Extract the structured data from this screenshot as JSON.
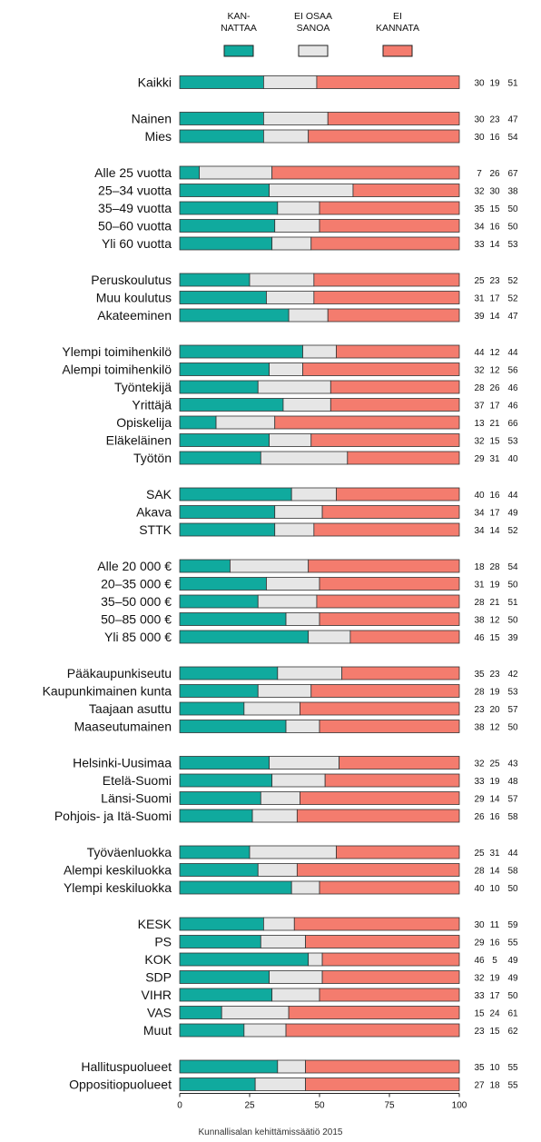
{
  "chart_data": {
    "type": "bar",
    "stacked": true,
    "orientation": "horizontal",
    "legend": {
      "placement": "top",
      "entries": [
        {
          "lines": [
            "KAN-",
            "NATTAA"
          ],
          "color": "#10aa9e"
        },
        {
          "lines": [
            "EI OSAA",
            "SANOA"
          ],
          "color": "#e6e6e6"
        },
        {
          "lines": [
            "EI",
            "KANNATA"
          ],
          "color": "#f47c6e"
        }
      ]
    },
    "series": [
      {
        "color": "#10aa9e"
      },
      {
        "color": "#e6e6e6"
      },
      {
        "color": "#f47c6e"
      }
    ],
    "groups": [
      {
        "rows": [
          {
            "label": "Kaikki",
            "values": [
              30,
              19,
              51
            ]
          }
        ]
      },
      {
        "rows": [
          {
            "label": "Nainen",
            "values": [
              30,
              23,
              47
            ]
          },
          {
            "label": "Mies",
            "values": [
              30,
              16,
              54
            ]
          }
        ]
      },
      {
        "rows": [
          {
            "label": "Alle 25 vuotta",
            "values": [
              7,
              26,
              67
            ]
          },
          {
            "label": "25–34 vuotta",
            "values": [
              32,
              30,
              38
            ]
          },
          {
            "label": "35–49 vuotta",
            "values": [
              35,
              15,
              50
            ]
          },
          {
            "label": "50–60 vuotta",
            "values": [
              34,
              16,
              50
            ]
          },
          {
            "label": "Yli 60 vuotta",
            "values": [
              33,
              14,
              53
            ]
          }
        ]
      },
      {
        "rows": [
          {
            "label": "Peruskoulutus",
            "values": [
              25,
              23,
              52
            ]
          },
          {
            "label": "Muu koulutus",
            "values": [
              31,
              17,
              52
            ]
          },
          {
            "label": "Akateeminen",
            "values": [
              39,
              14,
              47
            ]
          }
        ]
      },
      {
        "rows": [
          {
            "label": "Ylempi toimihenkilö",
            "values": [
              44,
              12,
              44
            ]
          },
          {
            "label": "Alempi toimihenkilö",
            "values": [
              32,
              12,
              56
            ]
          },
          {
            "label": "Työntekijä",
            "values": [
              28,
              26,
              46
            ]
          },
          {
            "label": "Yrittäjä",
            "values": [
              37,
              17,
              46
            ]
          },
          {
            "label": "Opiskelija",
            "values": [
              13,
              21,
              66
            ]
          },
          {
            "label": "Eläkeläinen",
            "values": [
              32,
              15,
              53
            ]
          },
          {
            "label": "Työtön",
            "values": [
              29,
              31,
              40
            ]
          }
        ]
      },
      {
        "rows": [
          {
            "label": "SAK",
            "values": [
              40,
              16,
              44
            ]
          },
          {
            "label": "Akava",
            "values": [
              34,
              17,
              49
            ]
          },
          {
            "label": "STTK",
            "values": [
              34,
              14,
              52
            ]
          }
        ]
      },
      {
        "rows": [
          {
            "label": "Alle 20 000 €",
            "values": [
              18,
              28,
              54
            ]
          },
          {
            "label": "20–35 000 €",
            "values": [
              31,
              19,
              50
            ]
          },
          {
            "label": "35–50 000 €",
            "values": [
              28,
              21,
              51
            ]
          },
          {
            "label": "50–85 000 €",
            "values": [
              38,
              12,
              50
            ]
          },
          {
            "label": "Yli 85 000 €",
            "values": [
              46,
              15,
              39
            ]
          }
        ]
      },
      {
        "rows": [
          {
            "label": "Pääkaupunkiseutu",
            "values": [
              35,
              23,
              42
            ]
          },
          {
            "label": "Kaupunkimainen kunta",
            "values": [
              28,
              19,
              53
            ]
          },
          {
            "label": "Taajaan asuttu",
            "values": [
              23,
              20,
              57
            ]
          },
          {
            "label": "Maaseutumainen",
            "values": [
              38,
              12,
              50
            ]
          }
        ]
      },
      {
        "rows": [
          {
            "label": "Helsinki-Uusimaa",
            "values": [
              32,
              25,
              43
            ]
          },
          {
            "label": "Etelä-Suomi",
            "values": [
              33,
              19,
              48
            ]
          },
          {
            "label": "Länsi-Suomi",
            "values": [
              29,
              14,
              57
            ]
          },
          {
            "label": "Pohjois- ja Itä-Suomi",
            "values": [
              26,
              16,
              58
            ]
          }
        ]
      },
      {
        "rows": [
          {
            "label": "Työväenluokka",
            "values": [
              25,
              31,
              44
            ]
          },
          {
            "label": "Alempi keskiluokka",
            "values": [
              28,
              14,
              58
            ]
          },
          {
            "label": "Ylempi keskiluokka",
            "values": [
              40,
              10,
              50
            ]
          }
        ]
      },
      {
        "rows": [
          {
            "label": "KESK",
            "values": [
              30,
              11,
              59
            ]
          },
          {
            "label": "PS",
            "values": [
              29,
              16,
              55
            ]
          },
          {
            "label": "KOK",
            "values": [
              46,
              5,
              49
            ]
          },
          {
            "label": "SDP",
            "values": [
              32,
              19,
              49
            ]
          },
          {
            "label": "VIHR",
            "values": [
              33,
              17,
              50
            ]
          },
          {
            "label": "VAS",
            "values": [
              15,
              24,
              61
            ]
          },
          {
            "label": "Muut",
            "values": [
              23,
              15,
              62
            ]
          }
        ]
      },
      {
        "rows": [
          {
            "label": "Hallituspuolueet",
            "values": [
              35,
              10,
              55
            ]
          },
          {
            "label": "Oppositiopuolueet",
            "values": [
              27,
              18,
              55
            ]
          }
        ]
      }
    ],
    "xlim": [
      0,
      100
    ],
    "xticks": [
      "0",
      "25",
      "50",
      "75",
      "100"
    ],
    "grid": false
  },
  "source": "Kunnallisalan kehittämissäätiö 2015"
}
